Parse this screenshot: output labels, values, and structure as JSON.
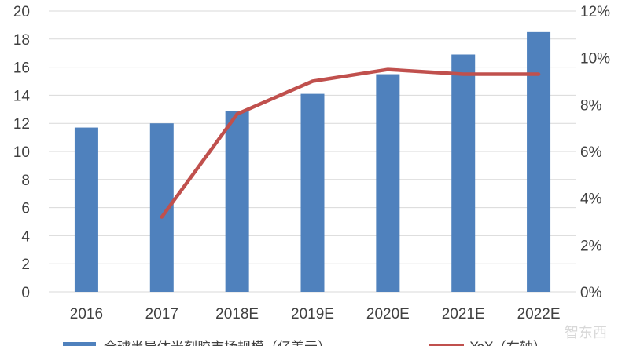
{
  "chart_data": {
    "type": "bar",
    "categories": [
      "2016",
      "2017",
      "2018E",
      "2019E",
      "2020E",
      "2021E",
      "2022E"
    ],
    "series": [
      {
        "name": "全球半导体光刻胶市场规模（亿美元）",
        "type": "bar",
        "axis": "left",
        "values": [
          11.7,
          12.0,
          12.9,
          14.1,
          15.5,
          16.9,
          18.5
        ]
      },
      {
        "name": "YoY（右轴）",
        "type": "line",
        "axis": "right",
        "values": [
          null,
          3.2,
          7.6,
          9.0,
          9.5,
          9.3,
          9.3
        ]
      }
    ],
    "y_left": {
      "min": 0,
      "max": 20,
      "step": 2,
      "ticks": [
        "0",
        "2",
        "4",
        "6",
        "8",
        "10",
        "12",
        "14",
        "16",
        "18",
        "20"
      ]
    },
    "y_right": {
      "min": 0,
      "max": 12,
      "step": 2,
      "ticks": [
        "0%",
        "2%",
        "4%",
        "6%",
        "8%",
        "10%",
        "12%"
      ]
    },
    "grid": true,
    "legend_position": "bottom",
    "colors": {
      "bar": "#4f81bd",
      "line": "#c0504d",
      "grid": "#d9d9d9",
      "text": "#404040"
    }
  },
  "watermark": "智东西"
}
